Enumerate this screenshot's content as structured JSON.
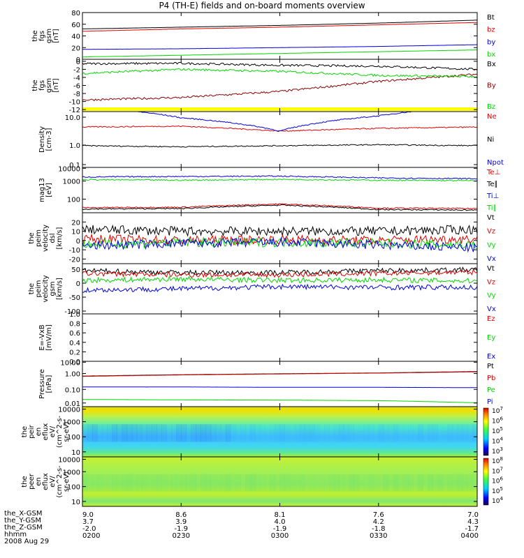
{
  "title": "P4 (TH-E) fields and on-board moments overview",
  "chart_data": {
    "type": "line",
    "x": [
      "0200",
      "0230",
      "0300",
      "0330",
      "0400"
    ],
    "xlim": [
      "0200",
      "0400"
    ],
    "panels": [
      {
        "ylabel": [
          "the",
          "fgs",
          "gsm",
          "[nT]"
        ],
        "yticks": [
          "0",
          "20",
          "40",
          "60",
          "80"
        ],
        "ylim": [
          0,
          80
        ],
        "series": [
          {
            "name": "Bt",
            "color": "#000000",
            "values": [
              52,
              55,
              58,
              62,
              67
            ]
          },
          {
            "name": "bz",
            "color": "#e00000",
            "values": [
              48,
              52,
              55,
              59,
              63
            ]
          },
          {
            "name": "by",
            "color": "#0000dd",
            "values": [
              17,
              18,
              20,
              22,
              25
            ]
          },
          {
            "name": "bx",
            "color": "#00d800",
            "values": [
              4,
              7,
              10,
              13,
              16
            ]
          }
        ]
      },
      {
        "ylabel": [
          "the",
          "fgs",
          "gsm",
          "[nT]"
        ],
        "yticks": [
          "-12",
          "-10",
          "-8",
          "-6",
          "-4",
          "-2",
          "0"
        ],
        "ylim": [
          -12.5,
          0.5
        ],
        "yellow_bar": true,
        "series": [
          {
            "name": "Bx",
            "color": "#000000",
            "values": [
              -0.6,
              -0.5,
              -1.0,
              -1.2,
              -2.0
            ]
          },
          {
            "name": "By",
            "color": "#8b0000",
            "values": [
              -9.6,
              -9.0,
              -7.5,
              -5.0,
              -3.2
            ]
          },
          {
            "name": "Bz",
            "color": "#00d800",
            "values": [
              -3.0,
              -2.0,
              -2.5,
              -3.5,
              -3.8
            ]
          }
        ]
      },
      {
        "ylabel": [
          "Density",
          "[cm-3]"
        ],
        "yticks": [
          "0.1",
          "1.0",
          "10.0"
        ],
        "ylim": [
          0.1,
          10
        ],
        "log": true,
        "series": [
          {
            "name": "Ne",
            "color": "#e00000",
            "values": [
              2.8,
              3.0,
              2.0,
              2.5,
              2.8
            ]
          },
          {
            "name": "Ni",
            "color": "#000000",
            "values": [
              0.6,
              0.55,
              0.6,
              0.65,
              0.6
            ]
          },
          {
            "name": "Npot",
            "color": "#0000dd",
            "values": [
              15,
              6,
              2.0,
              7,
              16
            ]
          }
        ]
      },
      {
        "ylabel": [
          "mag13",
          "[eV]"
        ],
        "yticks": [
          "100",
          "1000",
          "10000"
        ],
        "ylim": [
          50,
          15000
        ],
        "log": true,
        "series": [
          {
            "name": "Te⊥",
            "color": "#e00000",
            "values": [
              95,
              100,
              150,
              90,
              85
            ]
          },
          {
            "name": "Te∥",
            "color": "#000000",
            "values": [
              80,
              85,
              130,
              75,
              70
            ]
          },
          {
            "name": "Ti⊥",
            "color": "#0000dd",
            "values": [
              4500,
              4800,
              5000,
              4000,
              3600
            ]
          },
          {
            "name": "Ti∥",
            "color": "#00d800",
            "values": [
              3200,
              3000,
              3300,
              3000,
              2800
            ]
          }
        ]
      },
      {
        "ylabel": [
          "the",
          "peim",
          "velocity",
          "dsl",
          "[km/s]"
        ],
        "yticks": [
          "-20",
          "-10",
          "0",
          "10",
          "20"
        ],
        "ylim": [
          -25,
          30
        ],
        "series": [
          {
            "name": "Vt",
            "color": "#000000",
            "values": [
              12,
              10,
              10,
              10,
              12
            ]
          },
          {
            "name": "Vz",
            "color": "#e00000",
            "values": [
              2,
              0,
              1,
              0,
              2
            ]
          },
          {
            "name": "Vy",
            "color": "#00d800",
            "values": [
              -4,
              -2,
              -2,
              -3,
              -5
            ]
          },
          {
            "name": "Vx",
            "color": "#0000dd",
            "values": [
              -6,
              -3,
              -2,
              -5,
              -8
            ]
          }
        ]
      },
      {
        "ylabel": [
          "the",
          "peim",
          "velocity",
          "gsm",
          "[km/s]"
        ],
        "yticks": [
          "-100",
          "-50",
          "0",
          "50"
        ],
        "ylim": [
          -110,
          70
        ],
        "series": [
          {
            "name": "Vt",
            "color": "#000000",
            "values": [
              45,
              38,
              38,
              45,
              48
            ]
          },
          {
            "name": "Vz",
            "color": "#e00000",
            "values": [
              35,
              30,
              30,
              35,
              40
            ]
          },
          {
            "name": "Vy",
            "color": "#00d800",
            "values": [
              10,
              15,
              10,
              12,
              8
            ]
          },
          {
            "name": "Vx",
            "color": "#0000dd",
            "values": [
              -25,
              -20,
              -12,
              -15,
              -15
            ]
          }
        ]
      },
      {
        "ylabel": [
          "E=-VxB",
          "[mV/m]"
        ],
        "yticks": [
          "0.0",
          "0.2",
          "0.4",
          "0.6",
          "0.8",
          "1.0"
        ],
        "ylim": [
          0,
          1
        ],
        "series": [
          {
            "name": "Ez",
            "color": "#e00000",
            "values": []
          },
          {
            "name": "Ey",
            "color": "#00d800",
            "values": []
          },
          {
            "name": "Ex",
            "color": "#0000dd",
            "values": []
          }
        ]
      },
      {
        "ylabel": [
          "Pressure",
          "[nPa]"
        ],
        "yticks": [
          "0.01",
          "0.10",
          "1.00",
          "10.00"
        ],
        "ylim": [
          0.01,
          10
        ],
        "log": true,
        "series": [
          {
            "name": "Pt",
            "color": "#000000",
            "values": [
              1.05,
              1.3,
              1.5,
              1.7,
              2.1
            ]
          },
          {
            "name": "Pb",
            "color": "#e00000",
            "values": [
              1.0,
              1.25,
              1.45,
              1.65,
              2.0
            ]
          },
          {
            "name": "Pe",
            "color": "#00d800",
            "values": [
              0.03,
              0.028,
              0.027,
              0.025,
              0.018
            ]
          },
          {
            "name": "Pi",
            "color": "#0000dd",
            "values": [
              0.2,
              0.2,
              0.19,
              0.19,
              0.18
            ]
          }
        ]
      },
      {
        "type": "heatmap",
        "ylabel": [
          "the",
          "peir",
          "en",
          "eflux",
          "eV/",
          "(cm^2-s-",
          "sr-eV)"
        ],
        "yticks": [
          "10",
          "100",
          "1000",
          "10000"
        ],
        "colorbar": [
          "10^3",
          "10^4",
          "10^5",
          "10^6",
          "10^7"
        ]
      },
      {
        "type": "heatmap",
        "ylabel": [
          "the",
          "peer",
          "en",
          "eflux",
          "eV/",
          "(cm^2-s-",
          "sr-eV)"
        ],
        "yticks": [
          "10",
          "100",
          "1000",
          "10000"
        ],
        "colorbar": [
          "10^4",
          "10^5",
          "10^6",
          "10^7",
          "10^8"
        ]
      }
    ],
    "ephemeris": [
      {
        "label": "the_X-GSM",
        "values": [
          "9.0",
          "8.6",
          "8.1",
          "7.6",
          "7.0"
        ]
      },
      {
        "label": "the_Y-GSM",
        "values": [
          "3.7",
          "3.9",
          "4.0",
          "4.2",
          "4.3"
        ]
      },
      {
        "label": "the_Z-GSM",
        "values": [
          "-2.0",
          "-1.9",
          "-1.9",
          "-1.8",
          "-1.7"
        ]
      },
      {
        "label": "hhmm",
        "values": [
          "0200",
          "0230",
          "0300",
          "0330",
          "0400"
        ]
      }
    ],
    "date": "2008 Aug 29"
  }
}
